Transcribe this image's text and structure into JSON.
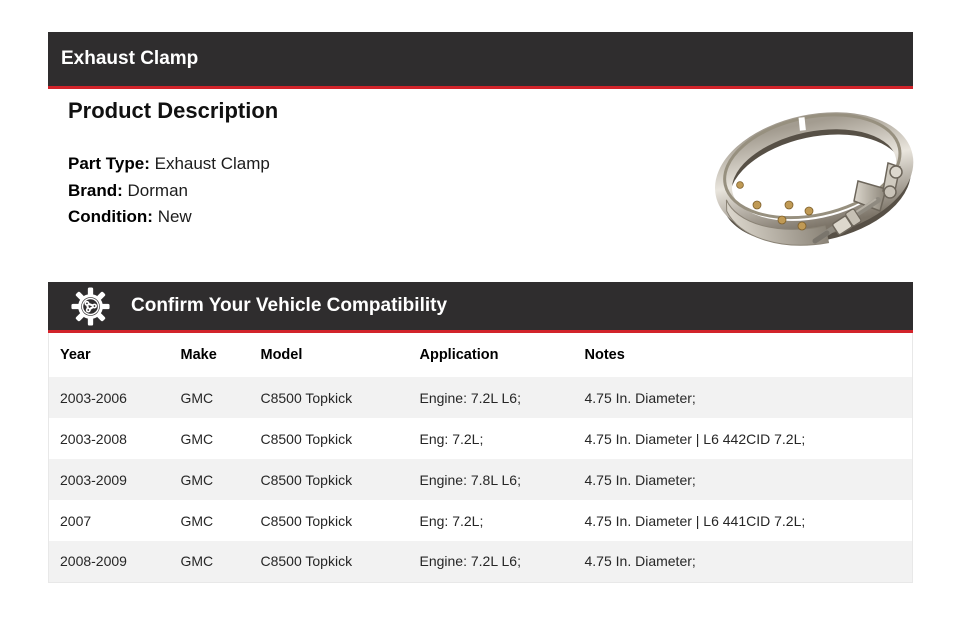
{
  "colors": {
    "bar_background": "#2f2d2e",
    "accent_red": "#d2232a",
    "row_alternate": "#f2f2f2",
    "table_border": "#e8e8e8",
    "text": "#1c1c1c"
  },
  "product_header": {
    "title": "Exhaust Clamp"
  },
  "description": {
    "heading": "Product Description",
    "fields": [
      {
        "label": "Part Type:",
        "value": "Exhaust Clamp"
      },
      {
        "label": "Brand:",
        "value": "Dorman"
      },
      {
        "label": "Condition:",
        "value": "New"
      }
    ]
  },
  "product_image": {
    "name": "exhaust-clamp-photo"
  },
  "compatibility": {
    "icon": "gear-icon",
    "title": "Confirm Your Vehicle Compatibility",
    "table": {
      "columns": [
        "Year",
        "Make",
        "Model",
        "Application",
        "Notes"
      ],
      "rows": [
        [
          "2003-2006",
          "GMC",
          "C8500 Topkick",
          "Engine: 7.2L L6;",
          "4.75 In. Diameter;"
        ],
        [
          "2003-2008",
          "GMC",
          "C8500 Topkick",
          "Eng: 7.2L;",
          "4.75 In. Diameter | L6 442CID 7.2L;"
        ],
        [
          "2003-2009",
          "GMC",
          "C8500 Topkick",
          "Engine: 7.8L L6;",
          "4.75 In. Diameter;"
        ],
        [
          "2007",
          "GMC",
          "C8500 Topkick",
          "Eng: 7.2L;",
          "4.75 In. Diameter | L6 441CID 7.2L;"
        ],
        [
          "2008-2009",
          "GMC",
          "C8500 Topkick",
          "Engine: 7.2L L6;",
          "4.75 In. Diameter;"
        ]
      ]
    }
  }
}
